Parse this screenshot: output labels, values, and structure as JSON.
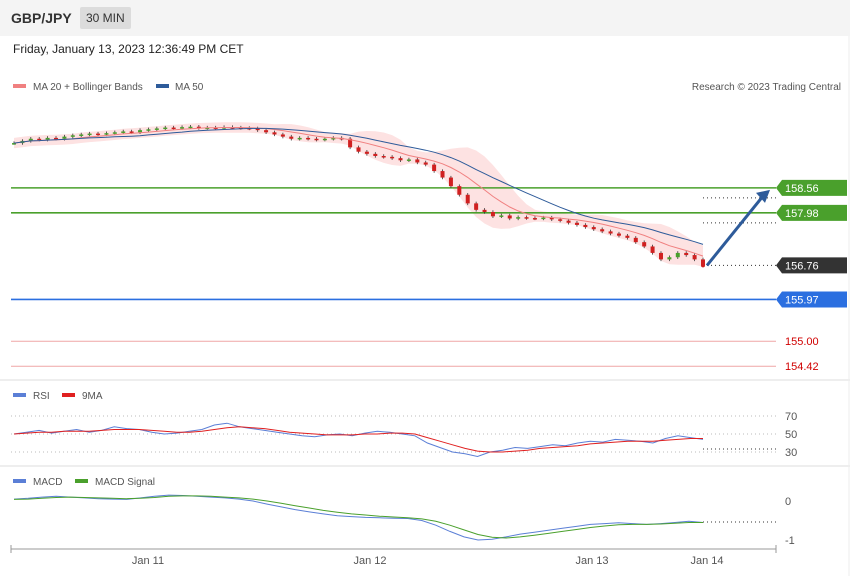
{
  "header": {
    "pair": "GBP/JPY",
    "timeframe": "30 MIN"
  },
  "date_line": "Friday, January 13, 2023 12:36:49 PM CET",
  "legend": {
    "main": [
      {
        "label": "MA 20 + Bollinger Bands",
        "color": "#f08080"
      },
      {
        "label": "MA 50",
        "color": "#2e5b9a"
      }
    ],
    "rsi": [
      {
        "label": "RSI",
        "color": "#5b7fd6"
      },
      {
        "label": "9MA",
        "color": "#e02020"
      }
    ],
    "macd": [
      {
        "label": "MACD",
        "color": "#5b7fd6"
      },
      {
        "label": "MACD Signal",
        "color": "#4aa02c"
      }
    ]
  },
  "copyright": "Research © 2023 Trading Central",
  "chart_data": [
    {
      "type": "candlestick",
      "ylim": [
        154.1,
        160.6
      ],
      "close_series": [
        159.6,
        159.65,
        159.7,
        159.68,
        159.72,
        159.7,
        159.75,
        159.78,
        159.8,
        159.82,
        159.8,
        159.83,
        159.85,
        159.87,
        159.85,
        159.9,
        159.92,
        159.94,
        159.96,
        159.95,
        159.97,
        159.98,
        159.95,
        159.96,
        159.95,
        159.97,
        159.96,
        159.95,
        159.94,
        159.9,
        159.85,
        159.8,
        159.75,
        159.7,
        159.72,
        159.7,
        159.68,
        159.7,
        159.72,
        159.7,
        159.5,
        159.4,
        159.35,
        159.3,
        159.28,
        159.25,
        159.2,
        159.22,
        159.15,
        159.1,
        158.95,
        158.8,
        158.6,
        158.4,
        158.2,
        158.05,
        158.0,
        157.9,
        157.92,
        157.85,
        157.88,
        157.86,
        157.85,
        157.87,
        157.83,
        157.8,
        157.75,
        157.7,
        157.65,
        157.6,
        157.55,
        157.5,
        157.45,
        157.4,
        157.3,
        157.2,
        157.05,
        156.9,
        156.95,
        157.05,
        157.0,
        156.9,
        156.76
      ],
      "levels": [
        {
          "value": 158.56,
          "label": "158.56",
          "color": "#4aa02c",
          "style": "solid"
        },
        {
          "value": 157.98,
          "label": "157.98",
          "color": "#4aa02c",
          "style": "solid"
        },
        {
          "value": 156.76,
          "label": "156.76",
          "color": "#333333",
          "style": "current"
        },
        {
          "value": 155.97,
          "label": "155.97",
          "color": "#2b6fe0",
          "style": "solid"
        },
        {
          "value": 155.0,
          "label": "155.00",
          "color": "#e05050",
          "style": "plain"
        },
        {
          "value": 154.42,
          "label": "154.42",
          "color": "#e05050",
          "style": "plain"
        }
      ],
      "projection": {
        "from": 156.76,
        "to": 158.56
      }
    },
    {
      "type": "line",
      "name": "RSI",
      "ticks": [
        "70",
        "50",
        "30"
      ],
      "series": [
        {
          "name": "RSI",
          "values": [
            50,
            52,
            54,
            51,
            53,
            55,
            52,
            54,
            58,
            56,
            55,
            52,
            50,
            51,
            53,
            55,
            60,
            62,
            58,
            56,
            54,
            52,
            50,
            48,
            47,
            49,
            50,
            48,
            51,
            53,
            52,
            50,
            48,
            40,
            35,
            30,
            28,
            25,
            30,
            32,
            35,
            34,
            36,
            38,
            37,
            40,
            42,
            41,
            44,
            43,
            42,
            40,
            45,
            48,
            46,
            44
          ]
        },
        {
          "name": "9MA",
          "values": [
            50,
            51,
            52,
            52,
            53,
            53,
            53,
            54,
            55,
            55,
            55,
            54,
            53,
            52,
            52,
            53,
            55,
            57,
            58,
            57,
            56,
            54,
            52,
            51,
            50,
            49,
            49,
            49,
            50,
            50,
            51,
            51,
            50,
            46,
            42,
            38,
            34,
            31,
            30,
            30,
            31,
            32,
            34,
            35,
            36,
            37,
            39,
            40,
            41,
            42,
            42,
            42,
            43,
            44,
            45,
            45
          ]
        }
      ]
    },
    {
      "type": "line",
      "name": "MACD",
      "ticks": [
        "0",
        "-1"
      ],
      "series": [
        {
          "name": "MACD",
          "values": [
            0.05,
            0.07,
            0.1,
            0.12,
            0.1,
            0.08,
            0.06,
            0.05,
            0.04,
            0.08,
            0.12,
            0.15,
            0.14,
            0.12,
            0.1,
            0.08,
            0.05,
            0.0,
            -0.08,
            -0.15,
            -0.22,
            -0.28,
            -0.33,
            -0.38,
            -0.4,
            -0.42,
            -0.43,
            -0.44,
            -0.45,
            -0.5,
            -0.62,
            -0.78,
            -0.92,
            -1.0,
            -0.98,
            -0.92,
            -0.85,
            -0.8,
            -0.75,
            -0.7,
            -0.65,
            -0.6,
            -0.58,
            -0.56,
            -0.58,
            -0.6,
            -0.58,
            -0.55,
            -0.52,
            -0.55
          ]
        },
        {
          "name": "MACD Signal",
          "values": [
            0.04,
            0.05,
            0.07,
            0.09,
            0.1,
            0.09,
            0.08,
            0.07,
            0.06,
            0.07,
            0.09,
            0.12,
            0.13,
            0.13,
            0.12,
            0.1,
            0.08,
            0.05,
            0.0,
            -0.06,
            -0.12,
            -0.18,
            -0.24,
            -0.29,
            -0.33,
            -0.36,
            -0.39,
            -0.41,
            -0.43,
            -0.46,
            -0.52,
            -0.62,
            -0.74,
            -0.86,
            -0.93,
            -0.95,
            -0.92,
            -0.88,
            -0.83,
            -0.78,
            -0.73,
            -0.68,
            -0.64,
            -0.61,
            -0.6,
            -0.6,
            -0.59,
            -0.57,
            -0.55,
            -0.55
          ]
        }
      ]
    }
  ],
  "x_ticks": [
    "Jan 11",
    "Jan 12",
    "Jan 13",
    "Jan 14"
  ]
}
